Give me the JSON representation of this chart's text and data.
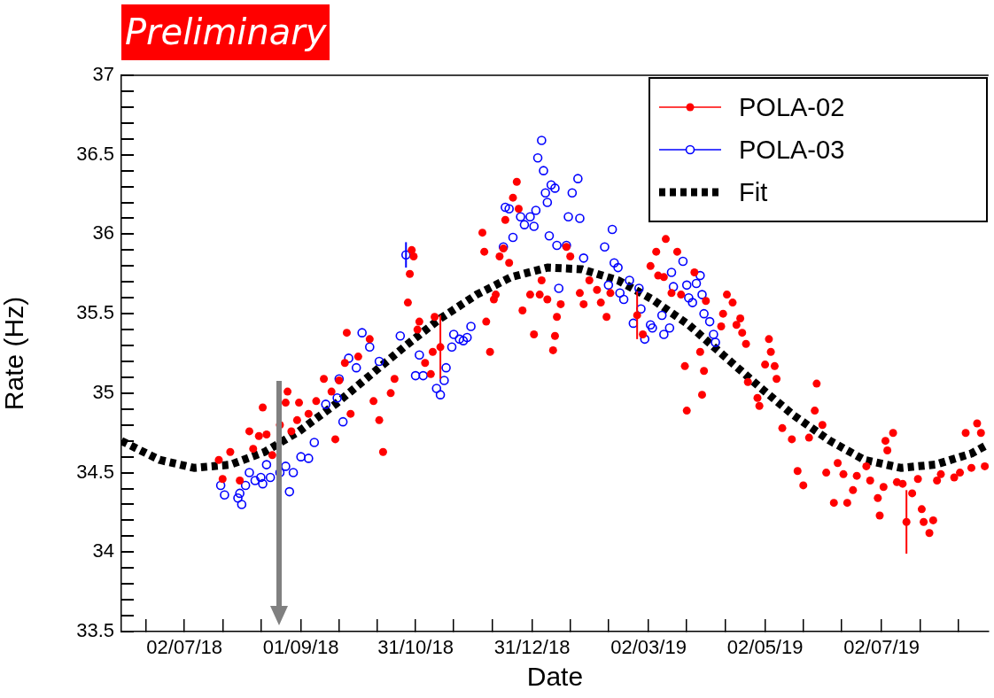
{
  "chart_data": {
    "type": "scatter",
    "title": "Preliminary",
    "xlabel": "Date",
    "ylabel": "Rate (Hz)",
    "legend": "top right",
    "marker": "circle",
    "xlim": [
      "2018-05-30",
      "2019-08-27"
    ],
    "xticks": [
      {
        "value": "2018-06-12",
        "label": null
      },
      {
        "value": "2018-07-02",
        "label": "02/07/18"
      },
      {
        "value": "2018-07-22",
        "label": null
      },
      {
        "value": "2018-08-11",
        "label": null
      },
      {
        "value": "2018-09-01",
        "label": "01/09/18"
      },
      {
        "value": "2018-09-21",
        "label": null
      },
      {
        "value": "2018-10-11",
        "label": null
      },
      {
        "value": "2018-10-31",
        "label": "31/10/18"
      },
      {
        "value": "2018-11-20",
        "label": null
      },
      {
        "value": "2018-12-10",
        "label": null
      },
      {
        "value": "2018-12-31",
        "label": "31/12/18"
      },
      {
        "value": "2019-01-20",
        "label": null
      },
      {
        "value": "2019-02-09",
        "label": null
      },
      {
        "value": "2019-03-02",
        "label": "02/03/19"
      },
      {
        "value": "2019-03-22",
        "label": null
      },
      {
        "value": "2019-04-11",
        "label": null
      },
      {
        "value": "2019-05-02",
        "label": "02/05/19"
      },
      {
        "value": "2019-05-22",
        "label": null
      },
      {
        "value": "2019-06-11",
        "label": null
      },
      {
        "value": "2019-07-02",
        "label": "02/07/19"
      },
      {
        "value": "2019-07-22",
        "label": null
      },
      {
        "value": "2019-08-11",
        "label": null
      }
    ],
    "ylim": [
      33.5,
      37
    ],
    "yticks": [
      33.5,
      {
        "value": 33.6,
        "label": null
      },
      {
        "value": 33.7,
        "label": null
      },
      {
        "value": 33.8,
        "label": null
      },
      {
        "value": 33.9,
        "label": null
      },
      34,
      {
        "value": 34.1,
        "label": null
      },
      {
        "value": 34.2,
        "label": null
      },
      {
        "value": 34.3,
        "label": null
      },
      {
        "value": 34.4,
        "label": null
      },
      34.5,
      {
        "value": 34.6,
        "label": null
      },
      {
        "value": 34.7,
        "label": null
      },
      {
        "value": 34.8,
        "label": null
      },
      {
        "value": 34.9,
        "label": null
      },
      35,
      {
        "value": 35.1,
        "label": null
      },
      {
        "value": 35.2,
        "label": null
      },
      {
        "value": 35.3,
        "label": null
      },
      {
        "value": 35.4,
        "label": null
      },
      35.5,
      {
        "value": 35.6,
        "label": null
      },
      {
        "value": 35.7,
        "label": null
      },
      {
        "value": 35.8,
        "label": null
      },
      {
        "value": 35.9,
        "label": null
      },
      36,
      {
        "value": 36.1,
        "label": null
      },
      {
        "value": 36.2,
        "label": null
      },
      {
        "value": 36.3,
        "label": null
      },
      {
        "value": 36.4,
        "label": null
      },
      36.5,
      {
        "value": 36.6,
        "label": null
      },
      {
        "value": 36.7,
        "label": null
      },
      {
        "value": 36.8,
        "label": null
      },
      {
        "value": 36.9,
        "label": null
      },
      37
    ],
    "series": [
      {
        "name": "POLA-02",
        "color": "#ff0000",
        "x": [
          "2018-07-20",
          "2018-07-22",
          "2018-07-26",
          "2018-07-31",
          "2018-08-05",
          "2018-08-07",
          "2018-08-10",
          "2018-08-12",
          "2018-08-14",
          "2018-08-17",
          "2018-08-21",
          "2018-08-24",
          "2018-08-25",
          "2018-08-27",
          "2018-08-30",
          "2018-08-31",
          "2018-09-05",
          "2018-09-09",
          "2018-09-13",
          "2018-09-17",
          "2018-09-19",
          "2018-09-21",
          "2018-09-24",
          "2018-09-25",
          "2018-09-27",
          "2018-10-01",
          "2018-10-07",
          "2018-10-09",
          "2018-10-12",
          "2018-10-14",
          "2018-10-18",
          "2018-10-20",
          "2018-10-27",
          "2018-10-28",
          "2018-10-29",
          "2018-10-30",
          "2018-11-01",
          "2018-11-02",
          "2018-11-05",
          "2018-11-08",
          "2018-11-09",
          "2018-11-10",
          "2018-11-13",
          "2018-12-05",
          "2018-12-06",
          "2018-12-07",
          "2018-12-09",
          "2018-12-11",
          "2018-12-12",
          "2018-12-14",
          "2018-12-16",
          "2018-12-17",
          "2018-12-19",
          "2018-12-21",
          "2018-12-23",
          "2018-12-24",
          "2018-12-26",
          "2018-12-30",
          "2019-01-01",
          "2019-01-04",
          "2019-01-05",
          "2019-01-08",
          "2019-01-11",
          "2019-01-12",
          "2019-01-13",
          "2019-01-15",
          "2019-01-18",
          "2019-01-20",
          "2019-01-25",
          "2019-01-27",
          "2019-01-30",
          "2019-02-03",
          "2019-02-05",
          "2019-02-08",
          "2019-02-10",
          "2019-02-24",
          "2019-02-27",
          "2019-03-03",
          "2019-03-06",
          "2019-03-07",
          "2019-03-10",
          "2019-03-11",
          "2019-03-14",
          "2019-03-17",
          "2019-03-19",
          "2019-03-21",
          "2019-03-22",
          "2019-03-26",
          "2019-03-29",
          "2019-03-30",
          "2019-03-31",
          "2019-04-01",
          "2019-04-09",
          "2019-04-10",
          "2019-04-12",
          "2019-04-15",
          "2019-04-17",
          "2019-04-19",
          "2019-04-20",
          "2019-04-22",
          "2019-04-23",
          "2019-04-28",
          "2019-04-29",
          "2019-05-02",
          "2019-05-04",
          "2019-05-05",
          "2019-05-07",
          "2019-05-08",
          "2019-05-11",
          "2019-05-16",
          "2019-05-19",
          "2019-05-22",
          "2019-05-25",
          "2019-05-28",
          "2019-05-29",
          "2019-06-01",
          "2019-06-03",
          "2019-06-07",
          "2019-06-09",
          "2019-06-12",
          "2019-06-14",
          "2019-06-17",
          "2019-06-19",
          "2019-06-24",
          "2019-06-26",
          "2019-06-30",
          "2019-07-01",
          "2019-07-03",
          "2019-07-04",
          "2019-07-05",
          "2019-07-08",
          "2019-07-10",
          "2019-07-13",
          "2019-07-15",
          "2019-07-18",
          "2019-07-21",
          "2019-07-23",
          "2019-07-24",
          "2019-07-27",
          "2019-07-29",
          "2019-07-31",
          "2019-08-02",
          "2019-08-09",
          "2019-08-12",
          "2019-08-15",
          "2019-08-18",
          "2019-08-21",
          "2019-08-23",
          "2019-08-25"
        ],
        "values": [
          34.58,
          34.46,
          34.63,
          34.45,
          34.76,
          34.65,
          34.73,
          34.91,
          34.74,
          34.61,
          34.8,
          34.94,
          35.01,
          34.76,
          34.83,
          34.94,
          34.87,
          34.95,
          35.09,
          35.01,
          34.71,
          35.08,
          35.19,
          35.38,
          34.87,
          35.23,
          35.34,
          34.95,
          34.83,
          34.63,
          35.0,
          35.09,
          35.57,
          35.75,
          35.9,
          35.86,
          35.4,
          35.45,
          35.19,
          35.12,
          35.26,
          35.48,
          35.29,
          36.01,
          35.89,
          35.45,
          35.26,
          35.59,
          35.62,
          35.86,
          35.91,
          36.09,
          35.82,
          36.23,
          36.33,
          36.16,
          35.52,
          35.62,
          35.37,
          35.62,
          35.71,
          35.59,
          35.27,
          35.36,
          35.48,
          35.56,
          35.92,
          35.86,
          35.63,
          35.56,
          35.71,
          35.65,
          35.57,
          35.48,
          35.63,
          35.49,
          35.37,
          35.8,
          35.89,
          35.74,
          35.73,
          35.97,
          35.63,
          35.89,
          35.62,
          35.17,
          34.89,
          35.76,
          35.26,
          34.99,
          35.14,
          35.58,
          35.42,
          35.5,
          35.62,
          35.57,
          35.43,
          35.47,
          35.38,
          35.31,
          35.07,
          34.97,
          34.92,
          35.18,
          35.34,
          35.26,
          35.17,
          35.09,
          34.78,
          34.71,
          34.51,
          34.42,
          34.72,
          34.89,
          35.06,
          34.8,
          34.5,
          34.31,
          34.56,
          34.49,
          34.31,
          34.39,
          34.48,
          34.54,
          34.45,
          34.34,
          34.23,
          34.41,
          34.7,
          34.64,
          34.75,
          34.44,
          34.43,
          34.19,
          34.37,
          34.46,
          34.27,
          34.19,
          34.12,
          34.2,
          34.45,
          34.49,
          34.47,
          34.5,
          34.75,
          34.53,
          34.81,
          34.75,
          34.54
        ],
        "errors": [
          null,
          null,
          null,
          null,
          null,
          null,
          null,
          null,
          null,
          null,
          null,
          null,
          null,
          null,
          null,
          null,
          null,
          null,
          null,
          null,
          null,
          null,
          null,
          null,
          null,
          null,
          null,
          null,
          null,
          null,
          null,
          null,
          null,
          null,
          null,
          null,
          null,
          null,
          null,
          null,
          null,
          null,
          0.2,
          null,
          null,
          null,
          null,
          null,
          null,
          null,
          null,
          null,
          null,
          null,
          null,
          null,
          null,
          null,
          null,
          null,
          null,
          null,
          null,
          null,
          null,
          null,
          null,
          null,
          null,
          null,
          null,
          null,
          null,
          null,
          null,
          0.15,
          null,
          null,
          null,
          null,
          null,
          null,
          null,
          null,
          null,
          null,
          null,
          null,
          null,
          null,
          null,
          null,
          null,
          null,
          null,
          null,
          null,
          null,
          null,
          null,
          null,
          null,
          null,
          null,
          null,
          null,
          null,
          null,
          null,
          null,
          null,
          null,
          null,
          null,
          null,
          null,
          null,
          null,
          null,
          null,
          null,
          null,
          null,
          null,
          null,
          null,
          null,
          null,
          null,
          null,
          null,
          null,
          null,
          0.2,
          null,
          null,
          null,
          null,
          null,
          null,
          null,
          null,
          null,
          null,
          null,
          null,
          null,
          null,
          null
        ]
      },
      {
        "name": "POLA-03",
        "color": "#0000ff",
        "x": [
          "2018-07-21",
          "2018-07-23",
          "2018-07-30",
          "2018-07-31",
          "2018-08-01",
          "2018-08-03",
          "2018-08-05",
          "2018-08-08",
          "2018-08-11",
          "2018-08-12",
          "2018-08-14",
          "2018-08-16",
          "2018-08-21",
          "2018-08-24",
          "2018-08-26",
          "2018-08-28",
          "2018-09-01",
          "2018-09-05",
          "2018-09-08",
          "2018-09-14",
          "2018-09-20",
          "2018-09-21",
          "2018-09-23",
          "2018-09-26",
          "2018-09-30",
          "2018-10-03",
          "2018-10-07",
          "2018-10-12",
          "2018-10-23",
          "2018-10-26",
          "2018-10-31",
          "2018-11-02",
          "2018-11-04",
          "2018-11-11",
          "2018-11-13",
          "2018-11-15",
          "2018-11-16",
          "2018-11-19",
          "2018-11-20",
          "2018-11-23",
          "2018-11-25",
          "2018-11-27",
          "2018-11-29",
          "2018-12-16",
          "2018-12-17",
          "2018-12-19",
          "2018-12-21",
          "2018-12-25",
          "2018-12-27",
          "2018-12-30",
          "2019-01-01",
          "2019-01-02",
          "2019-01-03",
          "2019-01-05",
          "2019-01-06",
          "2019-01-07",
          "2019-01-08",
          "2019-01-09",
          "2019-01-10",
          "2019-01-12",
          "2019-01-13",
          "2019-01-14",
          "2019-01-18",
          "2019-01-19",
          "2019-01-21",
          "2019-01-24",
          "2019-01-25",
          "2019-01-27",
          "2019-02-07",
          "2019-02-09",
          "2019-02-11",
          "2019-02-12",
          "2019-02-14",
          "2019-02-15",
          "2019-02-17",
          "2019-02-20",
          "2019-02-22",
          "2019-02-25",
          "2019-02-26",
          "2019-02-28",
          "2019-03-03",
          "2019-03-04",
          "2019-03-09",
          "2019-03-10",
          "2019-03-13",
          "2019-03-14",
          "2019-03-15",
          "2019-03-20",
          "2019-03-22",
          "2019-03-23",
          "2019-03-25",
          "2019-03-27",
          "2019-03-29",
          "2019-03-30",
          "2019-03-31",
          "2019-04-03",
          "2019-04-05",
          "2019-04-06"
        ],
        "values": [
          34.42,
          34.36,
          34.34,
          34.37,
          34.3,
          34.42,
          34.5,
          34.45,
          34.47,
          34.43,
          34.55,
          34.47,
          34.5,
          34.54,
          34.38,
          34.5,
          34.6,
          34.59,
          34.69,
          34.93,
          34.97,
          35.09,
          34.82,
          35.22,
          35.16,
          35.38,
          35.29,
          35.2,
          35.36,
          35.87,
          35.11,
          35.24,
          35.11,
          35.03,
          34.99,
          35.08,
          35.16,
          35.29,
          35.37,
          35.34,
          35.33,
          35.35,
          35.42,
          35.92,
          36.17,
          36.16,
          35.98,
          36.11,
          36.06,
          36.11,
          36.05,
          36.15,
          36.48,
          36.59,
          36.4,
          36.26,
          36.2,
          35.99,
          36.31,
          36.29,
          35.93,
          35.66,
          35.93,
          36.11,
          36.26,
          36.35,
          36.1,
          35.85,
          35.92,
          35.68,
          36.03,
          35.82,
          35.79,
          35.63,
          35.59,
          35.71,
          35.44,
          35.66,
          35.53,
          35.34,
          35.43,
          35.41,
          35.49,
          35.37,
          35.41,
          35.76,
          35.67,
          35.83,
          35.68,
          35.6,
          35.57,
          35.69,
          35.74,
          35.62,
          35.5,
          35.45,
          35.37,
          35.32
        ],
        "errors": [
          null,
          null,
          null,
          null,
          null,
          null,
          null,
          null,
          null,
          null,
          null,
          null,
          null,
          null,
          null,
          null,
          null,
          null,
          null,
          null,
          null,
          null,
          null,
          null,
          null,
          null,
          null,
          null,
          null,
          0.08,
          null,
          null,
          null,
          null,
          null,
          null,
          null,
          null,
          null,
          null,
          null,
          null,
          null,
          null,
          null,
          null,
          null,
          null,
          null,
          null,
          null,
          null,
          null,
          null,
          null,
          null,
          null,
          null,
          null,
          null,
          null,
          null,
          null,
          null,
          null,
          null,
          null,
          null,
          null,
          null,
          null,
          null,
          null,
          null,
          null,
          null,
          null,
          null,
          null,
          null,
          null,
          null,
          null,
          null,
          null,
          null,
          null,
          null,
          null,
          null,
          null,
          null,
          null,
          null,
          null,
          null,
          null,
          null
        ]
      },
      {
        "name": "Fit",
        "type": "line",
        "color": "#000000",
        "marker": "none",
        "line_style": "dashed",
        "x": [
          "2018-05-30",
          "2018-06-19",
          "2018-07-07",
          "2018-07-26",
          "2018-08-13",
          "2018-08-31",
          "2018-09-19",
          "2018-10-07",
          "2018-10-26",
          "2018-11-13",
          "2018-12-02",
          "2018-12-20",
          "2019-01-08",
          "2019-01-26",
          "2019-02-14",
          "2019-03-04",
          "2019-03-23",
          "2019-04-10",
          "2019-04-29",
          "2019-05-17",
          "2019-06-05",
          "2019-06-23",
          "2019-07-12",
          "2019-07-30",
          "2019-08-18",
          "2019-08-27"
        ],
        "values": [
          34.7,
          34.58,
          34.53,
          34.55,
          34.63,
          34.76,
          34.93,
          35.11,
          35.3,
          35.47,
          35.62,
          35.73,
          35.79,
          35.78,
          35.71,
          35.59,
          35.43,
          35.24,
          35.04,
          34.86,
          34.7,
          34.58,
          34.53,
          34.55,
          34.62,
          34.68
        ]
      }
    ]
  }
}
